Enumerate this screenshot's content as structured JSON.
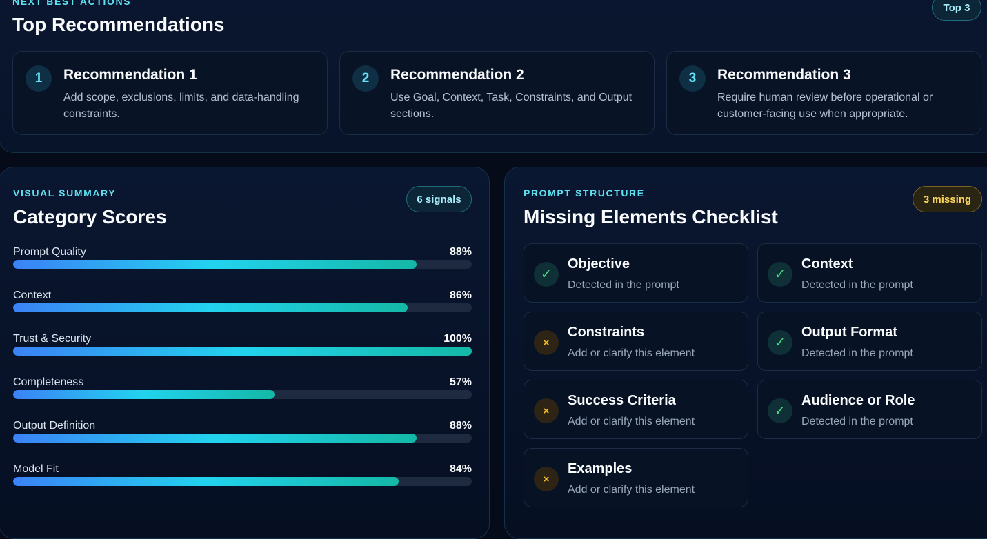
{
  "recommendations": {
    "eyebrow": "NEXT BEST ACTIONS",
    "title": "Top Recommendations",
    "badge": "Top 3",
    "items": [
      {
        "num": "1",
        "title": "Recommendation 1",
        "desc": "Add scope, exclusions, limits, and data-handling constraints."
      },
      {
        "num": "2",
        "title": "Recommendation 2",
        "desc": "Use Goal, Context, Task, Constraints, and Output sections."
      },
      {
        "num": "3",
        "title": "Recommendation 3",
        "desc": "Require human review before operational or customer-facing use when appropriate."
      }
    ]
  },
  "summary": {
    "eyebrow": "VISUAL SUMMARY",
    "title": "Category Scores",
    "badge": "6 signals",
    "scores": [
      {
        "label": "Prompt Quality",
        "value": 88,
        "display": "88%"
      },
      {
        "label": "Context",
        "value": 86,
        "display": "86%"
      },
      {
        "label": "Trust & Security",
        "value": 100,
        "display": "100%"
      },
      {
        "label": "Completeness",
        "value": 57,
        "display": "57%"
      },
      {
        "label": "Output Definition",
        "value": 88,
        "display": "88%"
      },
      {
        "label": "Model Fit",
        "value": 84,
        "display": "84%"
      }
    ]
  },
  "structure": {
    "eyebrow": "PROMPT STRUCTURE",
    "title": "Missing Elements Checklist",
    "badge": "3 missing",
    "icons": {
      "present": "check-icon",
      "missing": "x-icon"
    },
    "colors": {
      "present": "#4ade80",
      "missing": "#fbbf24"
    },
    "items": [
      {
        "title": "Objective",
        "status": "Detected in the prompt",
        "present": true,
        "glyph": "✓"
      },
      {
        "title": "Context",
        "status": "Detected in the prompt",
        "present": true,
        "glyph": "✓"
      },
      {
        "title": "Constraints",
        "status": "Add or clarify this element",
        "present": false,
        "glyph": "×"
      },
      {
        "title": "Output Format",
        "status": "Detected in the prompt",
        "present": true,
        "glyph": "✓"
      },
      {
        "title": "Success Criteria",
        "status": "Add or clarify this element",
        "present": false,
        "glyph": "×"
      },
      {
        "title": "Audience or Role",
        "status": "Detected in the prompt",
        "present": true,
        "glyph": "✓"
      },
      {
        "title": "Examples",
        "status": "Add or clarify this element",
        "present": false,
        "glyph": "×"
      }
    ]
  }
}
